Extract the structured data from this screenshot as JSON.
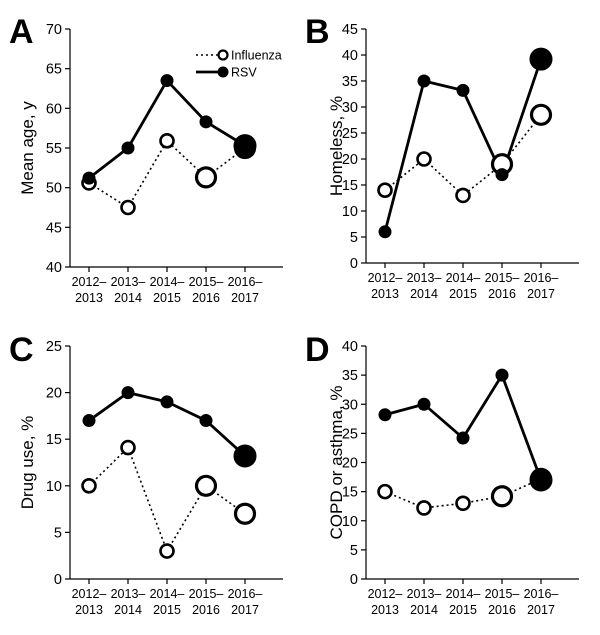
{
  "categories": [
    [
      "2012–",
      "2013"
    ],
    [
      "2013–",
      "2014"
    ],
    [
      "2014–",
      "2015"
    ],
    [
      "2015–",
      "2016"
    ],
    [
      "2016–",
      "2017"
    ]
  ],
  "legend": {
    "influenza": "Influenza",
    "rsv": "RSV"
  },
  "colors": {
    "line": "#000000",
    "open_fill": "#ffffff"
  },
  "chart_data": [
    {
      "type": "line",
      "letter": "A",
      "ylabel": "Mean age, y",
      "ylim": [
        40,
        70
      ],
      "yticks": [
        40,
        45,
        50,
        55,
        60,
        65,
        70
      ],
      "legend_position": "top-right",
      "series": [
        {
          "name": "Influenza",
          "style": "dotted-open",
          "values": [
            50.6,
            47.5,
            55.9,
            51.3,
            55.0
          ]
        },
        {
          "name": "RSV",
          "style": "solid-filled",
          "values": [
            51.2,
            55.0,
            63.5,
            58.3,
            55.3
          ]
        }
      ],
      "final_marker_large": true
    },
    {
      "type": "line",
      "letter": "B",
      "ylabel": "Homeless, %",
      "ylim": [
        0,
        45
      ],
      "yticks": [
        0,
        5,
        10,
        15,
        20,
        25,
        30,
        35,
        40,
        45
      ],
      "series": [
        {
          "name": "Influenza",
          "style": "dotted-open",
          "values": [
            14,
            20,
            13,
            19,
            28.5
          ]
        },
        {
          "name": "RSV",
          "style": "solid-filled",
          "values": [
            6,
            35,
            33.2,
            17,
            39.2
          ]
        }
      ]
    },
    {
      "type": "line",
      "letter": "C",
      "ylabel": "Drug use, %",
      "ylim": [
        0,
        25
      ],
      "yticks": [
        0,
        5,
        10,
        15,
        20,
        25
      ],
      "series": [
        {
          "name": "Influenza",
          "style": "dotted-open",
          "values": [
            10,
            14.1,
            3,
            10,
            7
          ]
        },
        {
          "name": "RSV",
          "style": "solid-filled",
          "values": [
            17,
            20,
            19,
            17,
            13.2
          ]
        }
      ]
    },
    {
      "type": "line",
      "letter": "D",
      "ylabel": "COPD or asthma, %",
      "ylim": [
        0,
        40
      ],
      "yticks": [
        0,
        5,
        10,
        15,
        20,
        25,
        30,
        35,
        40
      ],
      "series": [
        {
          "name": "Influenza",
          "style": "dotted-open",
          "values": [
            15,
            12.2,
            13,
            14.2,
            17.2
          ]
        },
        {
          "name": "RSV",
          "style": "solid-filled",
          "values": [
            28.2,
            30,
            24.2,
            35,
            17
          ]
        }
      ]
    }
  ]
}
